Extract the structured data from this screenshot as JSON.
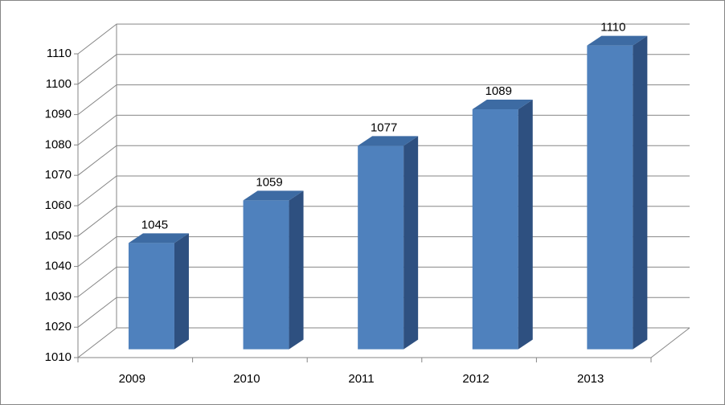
{
  "chart_data": {
    "type": "bar",
    "categories": [
      "2009",
      "2010",
      "2011",
      "2012",
      "2013"
    ],
    "values": [
      1045,
      1059,
      1077,
      1089,
      1110
    ],
    "color": "#4f81bd",
    "ylim": [
      1010,
      1110
    ],
    "yticks": [
      1010,
      1020,
      1030,
      1040,
      1050,
      1060,
      1070,
      1080,
      1090,
      1100,
      1110
    ],
    "grid": true
  }
}
